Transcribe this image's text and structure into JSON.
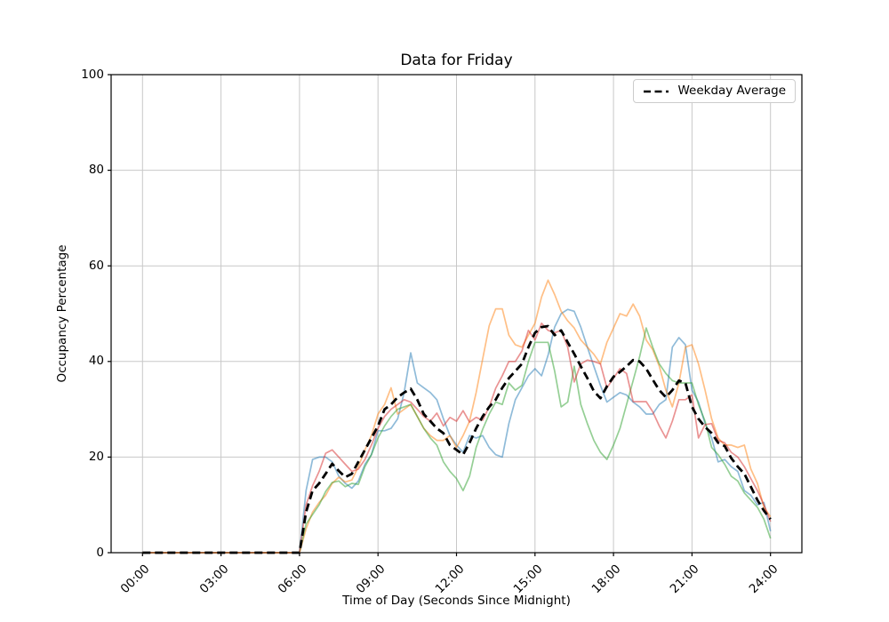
{
  "chart_data": {
    "type": "line",
    "title": "Data for Friday",
    "xlabel": "Time of Day (Seconds Since Midnight)",
    "ylabel": "Occupancy Percentage",
    "ylim": [
      0,
      100
    ],
    "xlim_seconds": [
      -4320,
      90720
    ],
    "grid": true,
    "yticks": [
      0,
      20,
      40,
      60,
      80,
      100
    ],
    "xticks": [
      {
        "label": "00:00",
        "seconds": 0
      },
      {
        "label": "03:00",
        "seconds": 10800
      },
      {
        "label": "06:00",
        "seconds": 21600
      },
      {
        "label": "09:00",
        "seconds": 32400
      },
      {
        "label": "12:00",
        "seconds": 43200
      },
      {
        "label": "15:00",
        "seconds": 54000
      },
      {
        "label": "18:00",
        "seconds": 64800
      },
      {
        "label": "21:00",
        "seconds": 75600
      },
      {
        "label": "24:00",
        "seconds": 86400
      }
    ],
    "legend": {
      "position": "upper right",
      "entries": [
        {
          "label": "Weekday Average",
          "style": "dashed",
          "color": "#000000"
        }
      ]
    },
    "x_start_hour": 0,
    "x_step_hours": 0.25,
    "series": [
      {
        "id": "series-1",
        "color": "#1f77b4",
        "opacity": 0.5,
        "line_width": 1.7,
        "dashed": false,
        "values": [
          0,
          0,
          0,
          0,
          0,
          0,
          0,
          0,
          0,
          0,
          0,
          0,
          0,
          0,
          0,
          0,
          0,
          0,
          0,
          0,
          0,
          0,
          0,
          0,
          0,
          13,
          19.5,
          20,
          20,
          19,
          16,
          14.5,
          13.5,
          15,
          18.5,
          20.5,
          25.5,
          25.5,
          26,
          28,
          33.5,
          41.8,
          35.5,
          34.5,
          33.5,
          32,
          28,
          24.5,
          22.5,
          21,
          24.5,
          24,
          24.5,
          22,
          20.5,
          20,
          27,
          32,
          34.5,
          37,
          38.5,
          37,
          41.3,
          47.2,
          50,
          50.9,
          50.5,
          47.2,
          43,
          39,
          35,
          31.5,
          32.5,
          33.5,
          33,
          31.5,
          30.5,
          29,
          29,
          31,
          32,
          43,
          45,
          43.5,
          34,
          31.5,
          27,
          24,
          19,
          19.5,
          18,
          17,
          13,
          12,
          10,
          10.5,
          4.5
        ]
      },
      {
        "id": "series-2",
        "color": "#ff7f0e",
        "opacity": 0.5,
        "line_width": 1.7,
        "dashed": false,
        "values": [
          0,
          0,
          0,
          0,
          0,
          0,
          0,
          0,
          0,
          0,
          0,
          0,
          0,
          0,
          0,
          0,
          0,
          0,
          0,
          0,
          0,
          0,
          0,
          0,
          0,
          5,
          8.5,
          10.5,
          12,
          14.5,
          15.8,
          14.8,
          15.2,
          18,
          21.5,
          24.5,
          29,
          31,
          34.5,
          29,
          30,
          31,
          28.5,
          26,
          24.5,
          23.5,
          23.5,
          24.5,
          22,
          24.5,
          27.5,
          33.5,
          40.5,
          47.5,
          51,
          51,
          45.5,
          43.5,
          43,
          45.5,
          48,
          53.5,
          57,
          54,
          50.5,
          48.5,
          47,
          44.5,
          43,
          41.5,
          39.5,
          44,
          47,
          50,
          49.5,
          52,
          49.5,
          44.5,
          42.5,
          39,
          34,
          30.5,
          35.5,
          43,
          43.5,
          39.5,
          34,
          28,
          24,
          22.5,
          22.5,
          22,
          22.5,
          17.5,
          14.5,
          9.5,
          7.5
        ]
      },
      {
        "id": "series-3",
        "color": "#2ca02c",
        "opacity": 0.5,
        "line_width": 1.7,
        "dashed": false,
        "values": [
          0,
          0,
          0,
          0,
          0,
          0,
          0,
          0,
          0,
          0,
          0,
          0,
          0,
          0,
          0,
          0,
          0,
          0,
          0,
          0,
          0,
          0,
          0,
          0,
          0,
          6,
          8,
          10,
          12.8,
          14.7,
          15,
          13.8,
          14.5,
          14.3,
          18,
          20.5,
          24,
          26.5,
          28.5,
          30,
          30.5,
          31,
          28.5,
          26,
          24,
          22.5,
          19,
          17,
          15.5,
          13,
          16,
          22,
          25.8,
          29,
          31.5,
          31,
          35.5,
          34,
          35,
          40,
          44,
          44,
          44,
          38,
          30.5,
          31.5,
          39,
          31,
          27,
          23.5,
          21,
          19.5,
          22.5,
          26,
          31,
          36,
          41,
          47,
          43,
          39.5,
          37.5,
          36,
          35.5,
          35.5,
          35.5,
          31,
          27.5,
          22,
          20.5,
          18.5,
          16,
          15,
          12.5,
          11,
          9.5,
          7,
          3
        ]
      },
      {
        "id": "series-4",
        "color": "#d62728",
        "opacity": 0.5,
        "line_width": 1.7,
        "dashed": false,
        "values": [
          0,
          0,
          0,
          0,
          0,
          0,
          0,
          0,
          0,
          0,
          0,
          0,
          0,
          0,
          0,
          0,
          0,
          0,
          0,
          0,
          0,
          0,
          0,
          0,
          0,
          10,
          14,
          17,
          20.8,
          21.5,
          20,
          18.5,
          17,
          17.5,
          19.5,
          22.5,
          26,
          28.5,
          30,
          31,
          32,
          31.5,
          30,
          28.5,
          27.5,
          29.2,
          26.5,
          28.3,
          27.5,
          29.7,
          27.3,
          28.3,
          27.7,
          30.5,
          34.4,
          37,
          40,
          40,
          42.2,
          46.5,
          44.5,
          48,
          46.5,
          46,
          46.5,
          43,
          35.7,
          39.5,
          40.3,
          40,
          39.5,
          34.5,
          36.5,
          38.5,
          37.5,
          31.6,
          31.6,
          31.6,
          29.5,
          26.5,
          24,
          27.5,
          32,
          32,
          33,
          24,
          26.8,
          27,
          23.5,
          23,
          21,
          20,
          18,
          15.5,
          13,
          10,
          6.5
        ]
      },
      {
        "id": "weekday-average",
        "label": "Weekday Average",
        "color": "#000000",
        "opacity": 1,
        "line_width": 2.8,
        "dashed": true,
        "values": [
          0,
          0,
          0,
          0,
          0,
          0,
          0,
          0,
          0,
          0,
          0,
          0,
          0,
          0,
          0,
          0,
          0,
          0,
          0,
          0,
          0,
          0,
          0,
          0,
          0,
          8.5,
          13,
          14.5,
          16.5,
          18.6,
          17.1,
          15.8,
          16.5,
          19,
          21.5,
          24,
          26.5,
          30,
          31,
          32.5,
          33.5,
          34.3,
          32,
          29,
          27.5,
          26,
          25,
          22.5,
          21.5,
          20.5,
          23,
          26,
          28.5,
          30.5,
          32,
          34.5,
          36.5,
          38,
          39.5,
          43,
          46,
          47.2,
          47.4,
          45.5,
          46.5,
          44,
          41.6,
          39,
          36.5,
          33.8,
          32.3,
          34.8,
          36.8,
          37.8,
          39,
          40.3,
          40,
          38.5,
          36.2,
          34,
          32.5,
          34,
          36,
          35.5,
          30.5,
          28,
          26.3,
          25,
          23,
          22.3,
          19.8,
          18,
          16.5,
          13.8,
          11,
          8.8,
          7
        ]
      }
    ],
    "colors": {
      "grid": "#c8c8c8",
      "spine": "#000000",
      "background": "#ffffff"
    }
  }
}
